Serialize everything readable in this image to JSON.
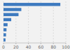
{
  "chart_data": {
    "type": "bar",
    "orientation": "horizontal",
    "categories": [
      null,
      null,
      null,
      null,
      null,
      null,
      null,
      null
    ],
    "values": [
      91.2,
      28.6,
      24.1,
      12.4,
      6.5,
      4.8,
      4.1,
      3.2
    ],
    "color": "#3d7abf",
    "xlim": [
      0,
      100
    ],
    "xticks": [
      0,
      20,
      40,
      60,
      80,
      100
    ],
    "grid": true,
    "tick_labels": "x"
  }
}
